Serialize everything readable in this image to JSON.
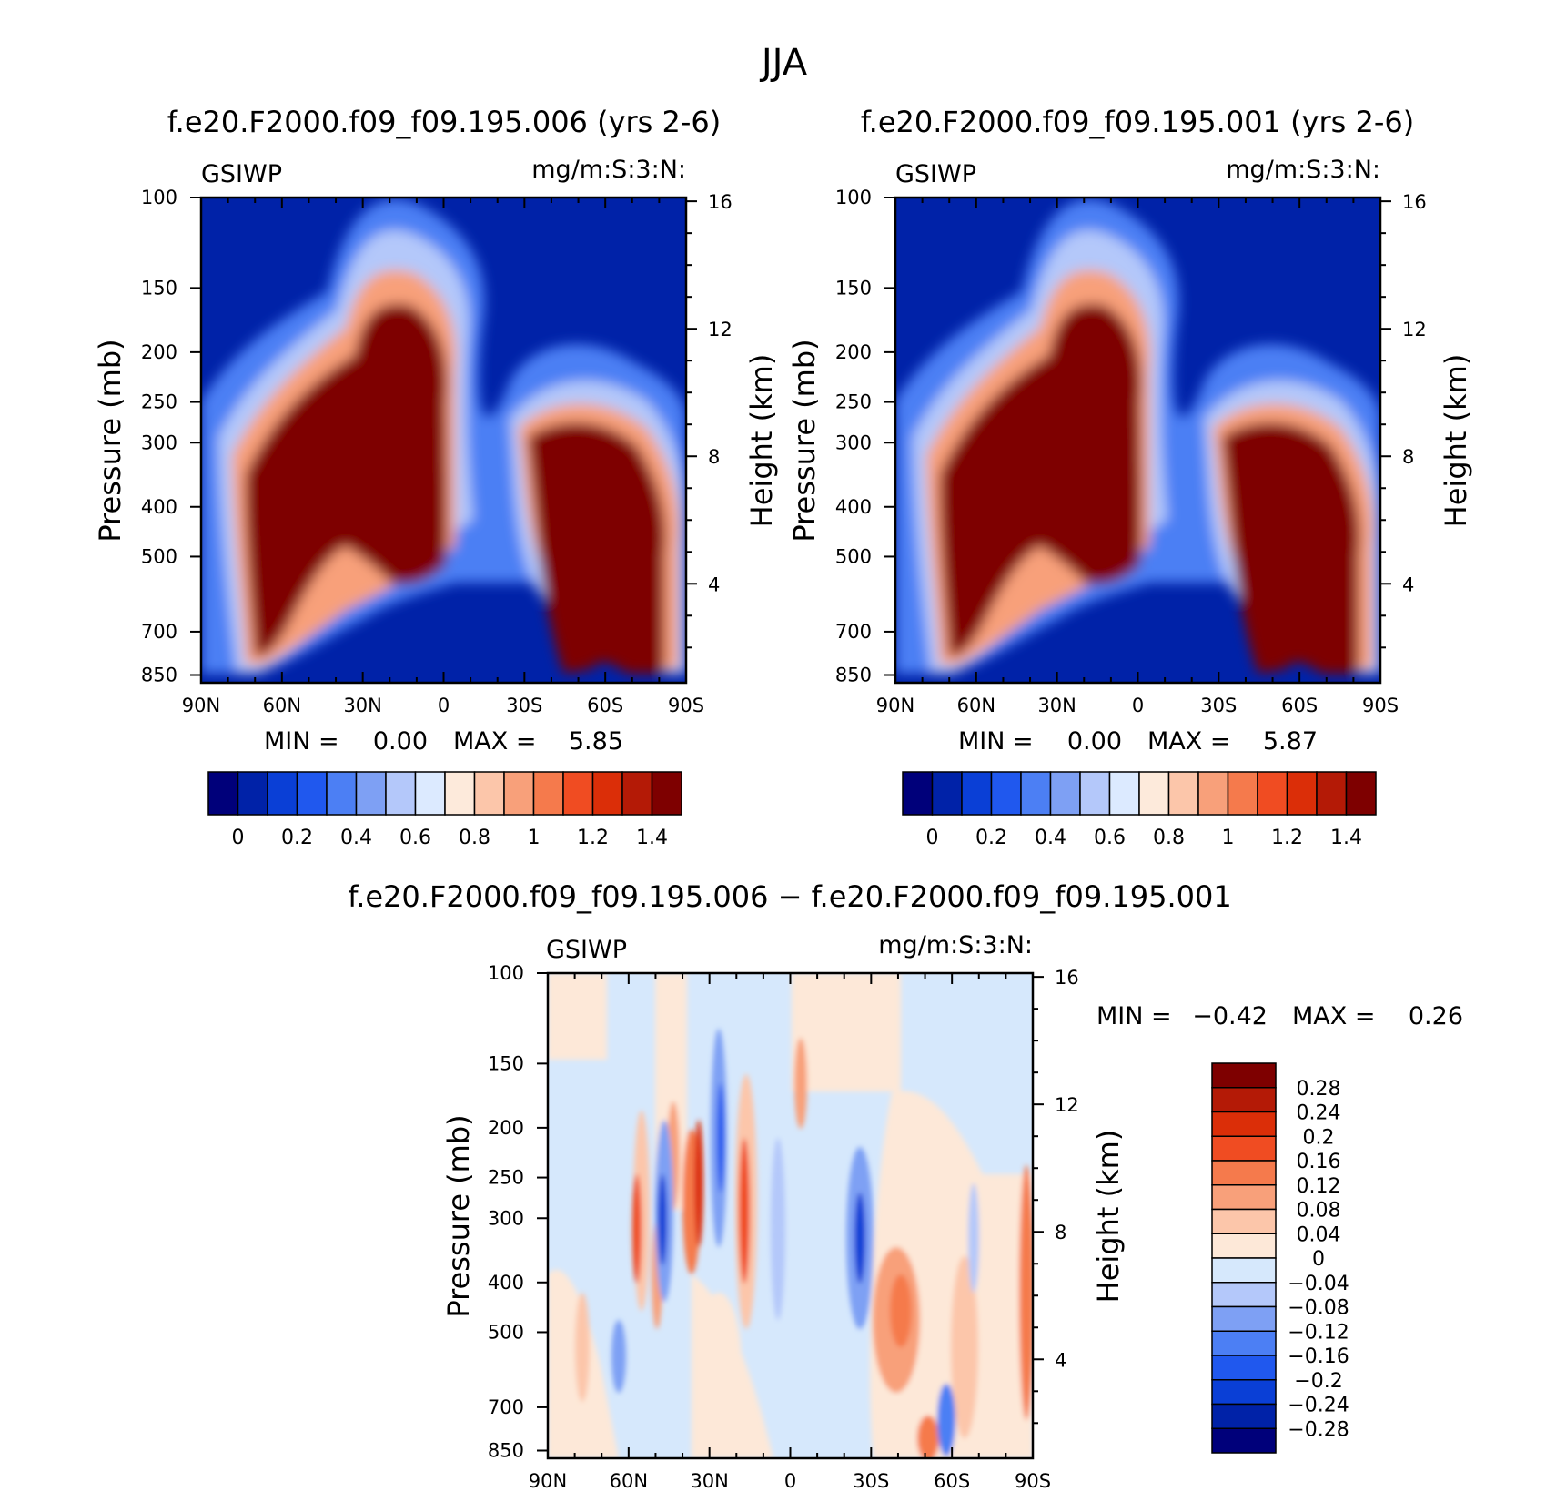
{
  "page": {
    "title": "JJA"
  },
  "chart_data": [
    {
      "type": "heatmap",
      "id": "panel1",
      "title": "f.e20.F2000.f09_f09.195.006 (yrs 2-6)",
      "variable": "GSIWP",
      "units": "mg/m:S:3:N:",
      "ylabel": "Pressure (mb)",
      "ylabel_right": "Height (km)",
      "x_ticks": [
        "90N",
        "60N",
        "30N",
        "0",
        "30S",
        "60S",
        "90S"
      ],
      "y_ticks": [
        "100",
        "150",
        "200",
        "250",
        "300",
        "400",
        "500",
        "700",
        "850"
      ],
      "y_ticks_right": [
        "16",
        "12",
        "8",
        "4"
      ],
      "min_label": "MIN =",
      "min_value": "0.00",
      "max_label": "MAX =",
      "max_value": "5.85",
      "colorbar_labels": [
        "0",
        "0.2",
        "0.4",
        "0.6",
        "0.8",
        "1",
        "1.2",
        "1.4"
      ]
    },
    {
      "type": "heatmap",
      "id": "panel2",
      "title": "f.e20.F2000.f09_f09.195.001 (yrs 2-6)",
      "variable": "GSIWP",
      "units": "mg/m:S:3:N:",
      "ylabel": "Pressure (mb)",
      "ylabel_right": "Height (km)",
      "x_ticks": [
        "90N",
        "60N",
        "30N",
        "0",
        "30S",
        "60S",
        "90S"
      ],
      "y_ticks": [
        "100",
        "150",
        "200",
        "250",
        "300",
        "400",
        "500",
        "700",
        "850"
      ],
      "y_ticks_right": [
        "16",
        "12",
        "8",
        "4"
      ],
      "min_label": "MIN =",
      "min_value": "0.00",
      "max_label": "MAX =",
      "max_value": "5.87",
      "colorbar_labels": [
        "0",
        "0.2",
        "0.4",
        "0.6",
        "0.8",
        "1",
        "1.2",
        "1.4"
      ]
    },
    {
      "type": "heatmap",
      "id": "panel3",
      "title": "f.e20.F2000.f09_f09.195.006 − f.e20.F2000.f09_f09.195.001",
      "variable": "GSIWP",
      "units": "mg/m:S:3:N:",
      "ylabel": "Pressure (mb)",
      "ylabel_right": "Height (km)",
      "x_ticks": [
        "90N",
        "60N",
        "30N",
        "0",
        "30S",
        "60S",
        "90S"
      ],
      "y_ticks": [
        "100",
        "150",
        "200",
        "250",
        "300",
        "400",
        "500",
        "700",
        "850"
      ],
      "y_ticks_right": [
        "16",
        "12",
        "8",
        "4"
      ],
      "min_label": "MIN =",
      "min_value": "−0.42",
      "max_label": "MAX =",
      "max_value": "0.26",
      "colorbar_labels": [
        "0.28",
        "0.24",
        "0.2",
        "0.16",
        "0.12",
        "0.08",
        "0.04",
        "0",
        "−0.04",
        "−0.08",
        "−0.12",
        "−0.16",
        "−0.2",
        "−0.24",
        "−0.28"
      ]
    }
  ],
  "colors": {
    "abs_scale": [
      "#00007a",
      "#0022a8",
      "#0a3fd6",
      "#2058ee",
      "#4c7ff4",
      "#7ea0f4",
      "#b4c8fa",
      "#dceaff",
      "#fdeadb",
      "#fcc6aa",
      "#f8a07a",
      "#f57a4c",
      "#f04c22",
      "#db2e08",
      "#b41a06",
      "#7e0000"
    ],
    "diff_scale": [
      "#7e0000",
      "#b41a06",
      "#db2e08",
      "#f04c22",
      "#f57a4c",
      "#f8a07a",
      "#fcc6aa",
      "#fde8d8",
      "#d6e8fc",
      "#b4c8fa",
      "#7ea0f4",
      "#4c7ff4",
      "#2058ee",
      "#0a3fd6",
      "#0022a8",
      "#00007a"
    ]
  }
}
